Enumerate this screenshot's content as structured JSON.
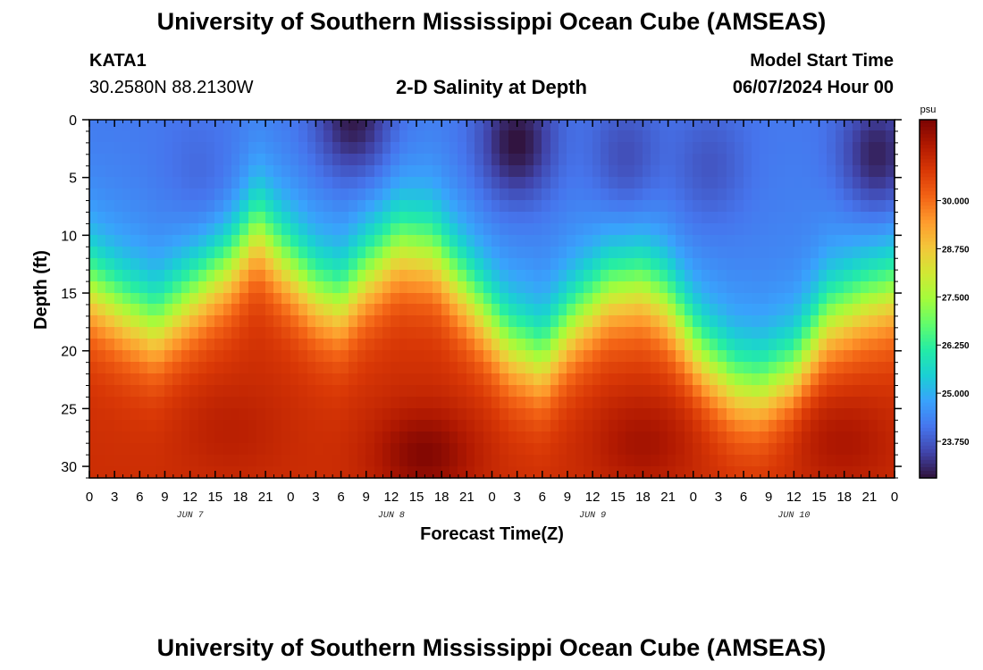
{
  "header": {
    "title": "University of Southern Mississippi Ocean Cube (AMSEAS)",
    "station_id": "KATA1",
    "station_coords": "30.2580N  88.2130W",
    "plot_title": "2-D Salinity at Depth",
    "model_start_label": "Model Start Time",
    "model_start_value": "06/07/2024 Hour 00"
  },
  "footer": {
    "title": "University of Southern Mississippi Ocean Cube (AMSEAS)"
  },
  "chart_data": {
    "type": "heatmap",
    "title": "2-D Salinity at Depth",
    "xlabel": "Forecast Time(Z)",
    "ylabel": "Depth (ft)",
    "x_ticks": [
      "0",
      "3",
      "6",
      "9",
      "12",
      "15",
      "18",
      "21",
      "0",
      "3",
      "6",
      "9",
      "12",
      "15",
      "18",
      "21",
      "0",
      "3",
      "6",
      "9",
      "12",
      "15",
      "18",
      "21",
      "0",
      "3",
      "6",
      "9",
      "12",
      "15",
      "18",
      "21",
      "0"
    ],
    "x_range_hours": [
      0,
      96
    ],
    "day_labels": [
      {
        "label": "JUN 7",
        "hour": 12
      },
      {
        "label": "JUN 8",
        "hour": 36
      },
      {
        "label": "JUN 9",
        "hour": 60
      },
      {
        "label": "JUN 10",
        "hour": 84
      }
    ],
    "y_ticks": [
      0,
      5,
      10,
      15,
      20,
      25,
      30
    ],
    "y_range_ft": [
      0,
      31
    ],
    "y_inverted": true,
    "colorbar": {
      "unit": "psu",
      "range": [
        22.8,
        32.1
      ],
      "labels": [
        "30.000",
        "28.750",
        "27.500",
        "26.250",
        "25.000",
        "23.750"
      ],
      "label_values": [
        30.0,
        28.75,
        27.5,
        26.25,
        25.0,
        23.75
      ],
      "colors": [
        "#30123b",
        "#4145ab",
        "#4675ed",
        "#39a2fc",
        "#1bcfd4",
        "#24eca6",
        "#61fc6c",
        "#a4fc3b",
        "#d1e834",
        "#f3c63a",
        "#fe9b2d",
        "#f36315",
        "#d93806",
        "#b11901",
        "#7a0402"
      ]
    },
    "interface_depth_ft": [
      {
        "hour": 0,
        "depth": 14.5
      },
      {
        "hour": 4,
        "depth": 16.5
      },
      {
        "hour": 8,
        "depth": 18.0
      },
      {
        "hour": 13,
        "depth": 15.0
      },
      {
        "hour": 17,
        "depth": 12.5
      },
      {
        "hour": 20,
        "depth": 9.5
      },
      {
        "hour": 23,
        "depth": 12.0
      },
      {
        "hour": 27,
        "depth": 15.0
      },
      {
        "hour": 30,
        "depth": 16.0
      },
      {
        "hour": 33,
        "depth": 13.5
      },
      {
        "hour": 37,
        "depth": 11.0
      },
      {
        "hour": 41,
        "depth": 11.5
      },
      {
        "hour": 45,
        "depth": 15.0
      },
      {
        "hour": 50,
        "depth": 19.5
      },
      {
        "hour": 54,
        "depth": 21.0
      },
      {
        "hour": 58,
        "depth": 17.5
      },
      {
        "hour": 62,
        "depth": 15.0
      },
      {
        "hour": 66,
        "depth": 14.5
      },
      {
        "hour": 69,
        "depth": 16.0
      },
      {
        "hour": 73,
        "depth": 20.5
      },
      {
        "hour": 77,
        "depth": 23.0
      },
      {
        "hour": 80,
        "depth": 23.5
      },
      {
        "hour": 84,
        "depth": 22.0
      },
      {
        "hour": 88,
        "depth": 17.5
      },
      {
        "hour": 92,
        "depth": 16.0
      },
      {
        "hour": 96,
        "depth": 15.0
      }
    ],
    "surface_fresh_cores": [
      {
        "hour": 31.5,
        "depth": 0,
        "value": 22.9
      },
      {
        "hour": 51,
        "depth": 2,
        "value": 22.8
      },
      {
        "hour": 64,
        "depth": 3,
        "value": 23.6
      },
      {
        "hour": 94,
        "depth": 3,
        "value": 23.0
      },
      {
        "hour": 13,
        "depth": 4,
        "value": 24.0
      },
      {
        "hour": 74,
        "depth": 4,
        "value": 23.7
      }
    ],
    "bottom_salty_cores": [
      {
        "hour": 40,
        "depth": 29,
        "value": 32.0
      },
      {
        "hour": 66,
        "depth": 28,
        "value": 31.6
      },
      {
        "hour": 17,
        "depth": 27,
        "value": 31.3
      },
      {
        "hour": 90,
        "depth": 28,
        "value": 31.5
      }
    ]
  }
}
